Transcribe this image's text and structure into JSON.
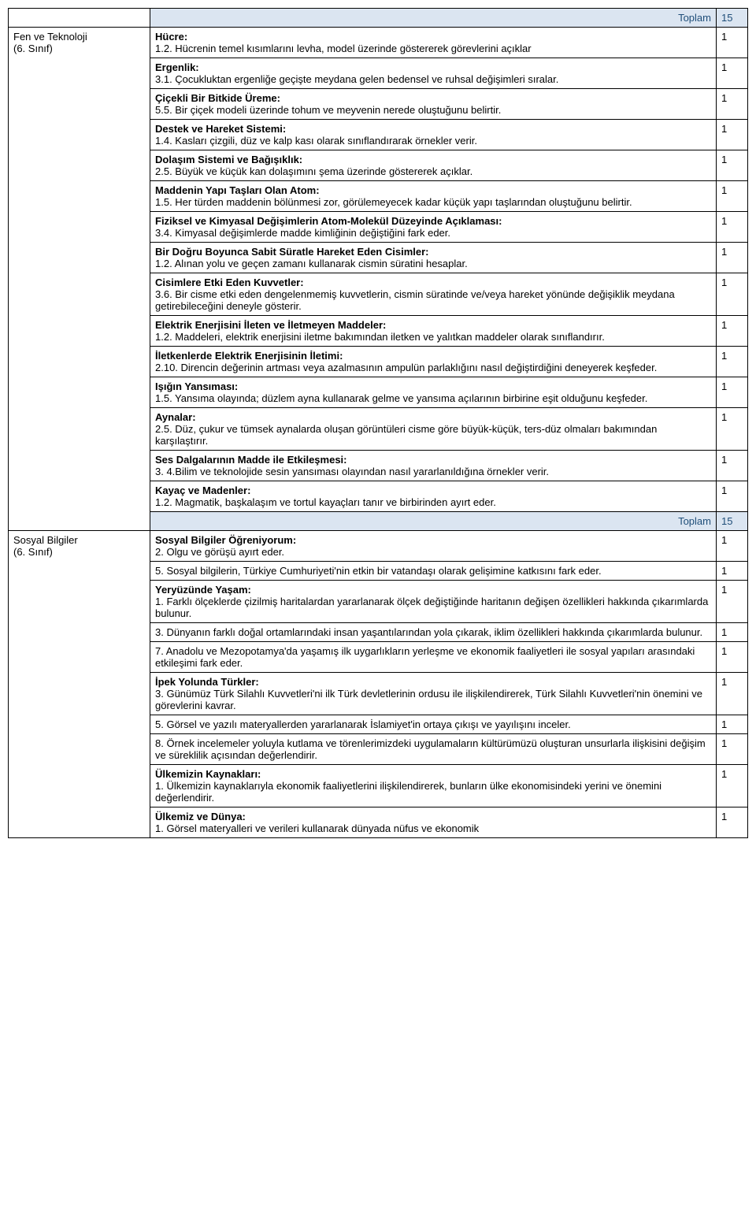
{
  "labels": {
    "toplam": "Toplam"
  },
  "sections": [
    {
      "subject": [
        "Fen ve Teknoloji",
        "(6. Sınıf)"
      ],
      "topRow": {
        "isTotal": true,
        "count": "15"
      },
      "rows": [
        {
          "heading": "Hücre:",
          "body": "1.2. Hücrenin temel kısımlarını levha,  model üzerinde göstererek görevlerini açıklar",
          "count": "1"
        },
        {
          "heading": "Ergenlik:",
          "body": "3.1. Çocukluktan ergenliğe geçişte meydana gelen bedensel ve ruhsal değişimleri sıralar.",
          "count": "1"
        },
        {
          "heading": "Çiçekli Bir Bitkide Üreme:",
          "body": "5.5. Bir çiçek modeli üzerinde tohum ve meyvenin nerede oluştuğunu belirtir.",
          "count": "1"
        },
        {
          "heading": "Destek ve Hareket Sistemi:",
          "body": "1.4. Kasları çizgili, düz ve kalp kası olarak sınıflandırarak örnekler verir.",
          "count": "1"
        },
        {
          "heading": "Dolaşım Sistemi ve Bağışıklık:",
          "body": "2.5. Büyük ve küçük kan dolaşımını şema üzerinde göstererek açıklar.",
          "count": "1"
        },
        {
          "heading": "Maddenin Yapı Taşları Olan Atom:",
          "body": "1.5. Her türden maddenin bölünmesi zor, görülemeyecek kadar küçük yapı taşlarından oluştuğunu belirtir.",
          "count": "1"
        },
        {
          "heading": "Fiziksel ve Kimyasal Değişimlerin Atom-Molekül Düzeyinde Açıklaması:",
          "body": "3.4. Kimyasal değişimlerde madde kimliğinin değiştiğini fark eder.",
          "count": "1"
        },
        {
          "heading": "Bir Doğru Boyunca Sabit Süratle Hareket Eden Cisimler:",
          "body": "1.2. Alınan yolu ve geçen zamanı kullanarak cismin süratini hesaplar.",
          "count": "1"
        },
        {
          "heading": "Cisimlere Etki Eden Kuvvetler:",
          "body": "3.6. Bir cisme etki eden dengelenmemiş kuvvetlerin, cismin süratinde ve/veya hareket yönünde değişiklik meydana getirebileceğini deneyle gösterir.",
          "count": "1"
        },
        {
          "heading": "Elektrik Enerjisini İleten ve İletmeyen Maddeler:",
          "body": "1.2. Maddeleri, elektrik enerjisini iletme bakımından iletken ve yalıtkan maddeler olarak sınıflandırır.",
          "count": "1"
        },
        {
          "heading": "İletkenlerde Elektrik Enerjisinin İletimi:",
          "body": "2.10. Direncin değerinin artması veya azalmasının ampulün parlaklığını nasıl değiştirdiğini deneyerek keşfeder.",
          "count": "1"
        },
        {
          "heading": "Işığın Yansıması:",
          "body": "1.5. Yansıma olayında; düzlem ayna kullanarak gelme ve yansıma açılarının birbirine eşit olduğunu keşfeder.",
          "count": "1"
        },
        {
          "heading": "Aynalar:",
          "body": "2.5. Düz, çukur ve tümsek aynalarda oluşan görüntüleri cisme göre büyük-küçük, ters-düz olmaları bakımından karşılaştırır.",
          "count": "1"
        },
        {
          "heading": "Ses Dalgalarının Madde ile Etkileşmesi:",
          "body": "3. 4.Bilim ve teknolojide sesin yansıması olayından nasıl yararlanıldığına örnekler verir.",
          "count": "1"
        },
        {
          "heading": "Kayaç ve Madenler:",
          "body": "1.2. Magmatik, başkalaşım ve tortul kayaçları tanır ve birbirinden ayırt eder.",
          "count": "1"
        },
        {
          "isTotal": true,
          "count": "15"
        }
      ]
    },
    {
      "subject": [
        "Sosyal Bilgiler",
        "(6. Sınıf)"
      ],
      "rows": [
        {
          "heading": "Sosyal Bilgiler Öğreniyorum:",
          "body": "2. Olgu ve görüşü ayırt eder.",
          "count": "1"
        },
        {
          "body": "5. Sosyal bilgilerin, Türkiye Cumhuriyeti'nin etkin bir vatandaşı olarak gelişimine katkısını fark eder.",
          "count": "1"
        },
        {
          "heading": "Yeryüzünde Yaşam:",
          "body": "1. Farklı ölçeklerde çizilmiş haritalardan yararlanarak ölçek değiştiğinde haritanın değişen özellikleri hakkında çıkarımlarda bulunur.",
          "count": "1"
        },
        {
          "body": "3. Dünyanın farklı doğal ortamlarındaki insan yaşantılarından yola çıkarak, iklim özellikleri hakkında çıkarımlarda bulunur.",
          "count": "1"
        },
        {
          "body": "7. Anadolu ve Mezopotamya'da yaşamış ilk uygarlıkların yerleşme ve ekonomik faaliyetleri ile sosyal yapıları arasındaki etkileşimi fark eder.",
          "count": "1"
        },
        {
          "heading": "İpek Yolunda Türkler:",
          "body": "3. Günümüz Türk Silahlı Kuvvetleri'ni ilk Türk devletlerinin ordusu ile ilişkilendirerek, Türk Silahlı Kuvvetleri'nin önemini ve görevlerini kavrar.",
          "count": "1"
        },
        {
          "body": "5. Görsel ve yazılı materyallerden yararlanarak İslamiyet'in ortaya çıkışı ve yayılışını inceler.",
          "count": "1"
        },
        {
          "body": "8. Örnek incelemeler yoluyla kutlama ve törenlerimizdeki uygulamaların kültürümüzü oluşturan unsurlarla ilişkisini değişim ve süreklilik açısından değerlendirir.",
          "count": "1"
        },
        {
          "heading": "Ülkemizin Kaynakları:",
          "body": "1. Ülkemizin kaynaklarıyla ekonomik faaliyetlerini ilişkilendirerek, bunların ülke ekonomisindeki yerini ve önemini değerlendirir.",
          "count": "1"
        },
        {
          "heading": "Ülkemiz ve Dünya:",
          "body": "1. Görsel materyalleri ve verileri kullanarak dünyada nüfus ve ekonomik",
          "count": "1"
        }
      ]
    }
  ]
}
